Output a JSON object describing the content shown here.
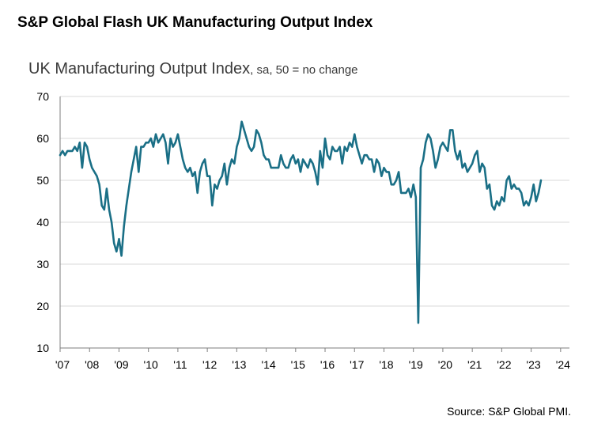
{
  "header": {
    "title": "S&P Global Flash UK Manufacturing Output Index"
  },
  "footer": {
    "source": "Source: S&P Global PMI."
  },
  "colors": {
    "line": "#1a6f86",
    "grid": "#d9d9d9",
    "axis": "#7f7f7f",
    "text": "#000000"
  },
  "chart_data": {
    "type": "line",
    "title": "UK Manufacturing Output Index",
    "subtitle": ", sa, 50 = no change",
    "xlabel": "",
    "ylabel": "",
    "ylim": [
      10,
      70
    ],
    "xlim": [
      2007.0,
      2024.3
    ],
    "yticks": [
      10,
      20,
      30,
      40,
      50,
      60,
      70
    ],
    "xticks": [
      2007,
      2008,
      2009,
      2010,
      2011,
      2012,
      2013,
      2014,
      2015,
      2016,
      2017,
      2018,
      2019,
      2020,
      2021,
      2022,
      2023,
      2024
    ],
    "xtick_labels": [
      "'07",
      "'08",
      "'09",
      "'10",
      "'11",
      "'12",
      "'13",
      "'14",
      "'15",
      "'16",
      "'17",
      "'18",
      "'19",
      "'20",
      "'21",
      "'22",
      "'23",
      "'24"
    ],
    "grid": true,
    "series": [
      {
        "name": "UK Manufacturing Output Index",
        "start": 2007.0,
        "step": 0.0833333,
        "values": [
          56,
          57,
          56,
          57,
          57,
          57,
          58,
          57,
          59,
          53,
          59,
          58,
          55,
          53,
          52,
          51,
          49,
          44,
          43,
          48,
          43,
          40,
          35,
          33,
          36,
          32,
          39,
          44,
          48,
          52,
          55,
          58,
          52,
          58,
          58,
          59,
          59,
          60,
          58,
          61,
          59,
          60,
          61,
          59,
          54,
          60,
          58,
          59,
          61,
          58,
          55,
          53,
          52,
          53,
          51,
          52,
          47,
          52,
          54,
          55,
          51,
          51,
          44,
          49,
          48,
          50,
          51,
          54,
          49,
          53,
          55,
          54,
          58,
          60,
          64,
          62,
          60,
          58,
          57,
          58,
          62,
          61,
          59,
          56,
          55,
          55,
          53,
          53,
          53,
          53,
          56,
          54,
          53,
          53,
          55,
          56,
          54,
          55,
          52,
          55,
          54,
          53,
          55,
          54,
          52,
          49,
          57,
          53,
          60,
          56,
          55,
          58,
          57,
          57,
          58,
          54,
          58,
          57,
          59,
          58,
          61,
          58,
          56,
          54,
          56,
          56,
          55,
          55,
          52,
          55,
          54,
          51,
          53,
          52,
          52,
          49,
          49,
          50,
          52,
          47,
          47,
          47,
          48,
          46,
          49,
          46,
          16,
          53,
          55,
          59,
          61,
          60,
          57,
          53,
          55,
          58,
          59,
          58,
          57,
          62,
          62,
          57,
          55,
          57,
          53,
          54,
          52,
          53,
          54,
          56,
          57,
          52,
          54,
          53,
          48,
          49,
          44,
          43,
          45,
          44,
          46,
          45,
          50,
          51,
          48,
          49,
          48,
          48,
          47,
          44,
          45,
          44,
          46,
          49,
          45,
          47,
          50
        ]
      }
    ]
  }
}
